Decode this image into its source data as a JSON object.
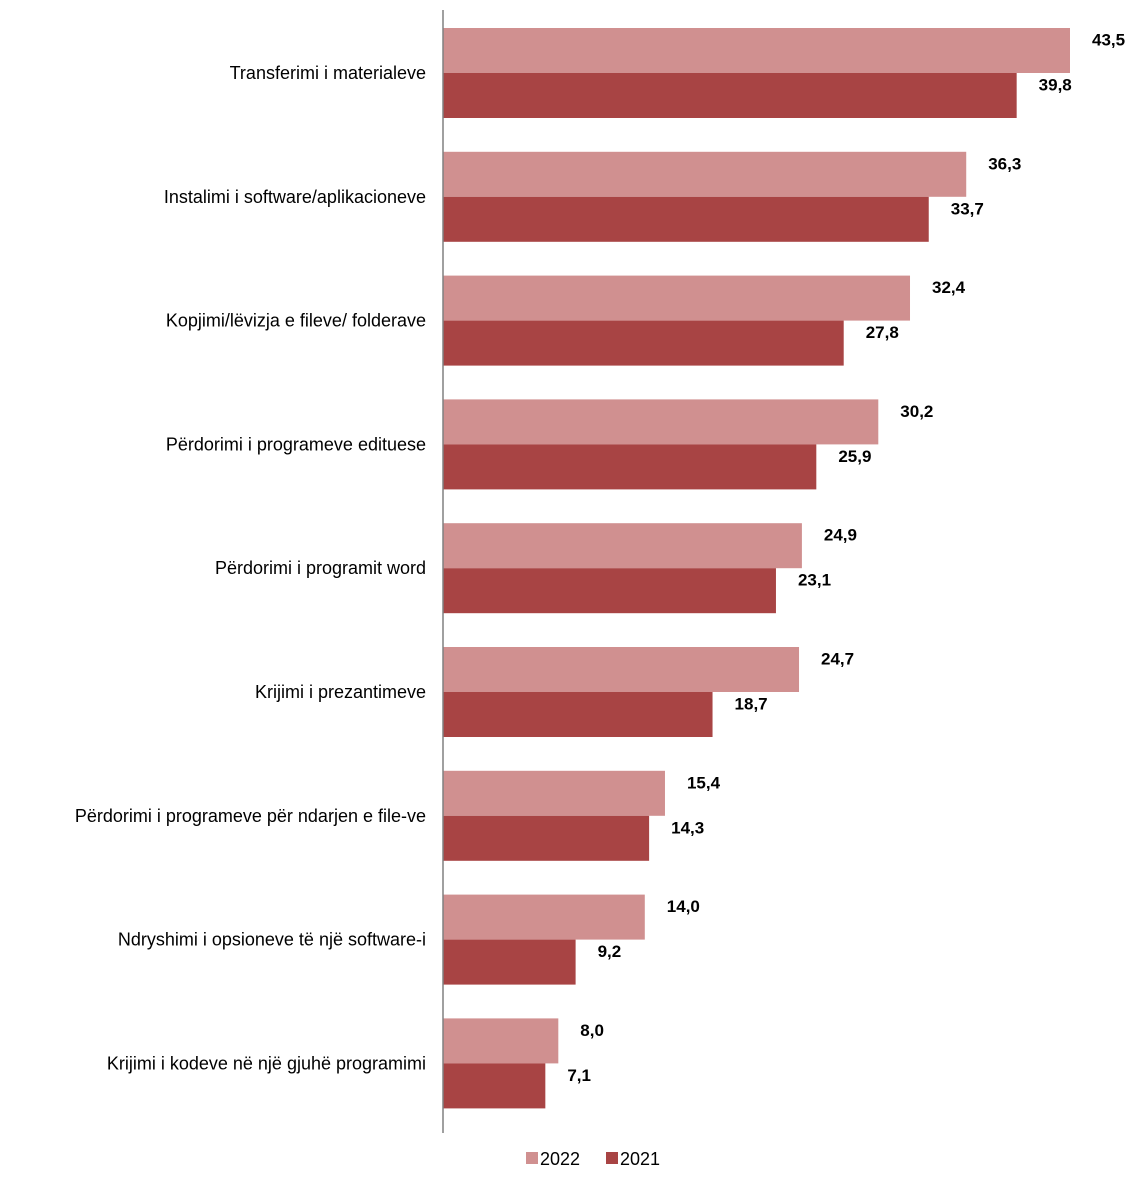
{
  "chart_data": {
    "type": "bar",
    "orientation": "horizontal",
    "categories": [
      "Transferimi i materialeve",
      "Instalimi i software/aplikacioneve",
      "Kopjimi/lëvizja e fileve/ folderave",
      "Përdorimi i programeve edituese",
      "Përdorimi i programit word",
      "Krijimi i prezantimeve",
      "Përdorimi i programeve për ndarjen e file-ve",
      "Ndryshimi i opsioneve të një software-i",
      "Krijimi i kodeve në një gjuhë programimi"
    ],
    "series": [
      {
        "name": "2022",
        "color": "#D09090",
        "values": [
          43.5,
          36.3,
          32.4,
          30.2,
          24.9,
          24.7,
          15.4,
          14.0,
          8.0
        ],
        "labels": [
          "43,5",
          "36,3",
          "32,4",
          "30,2",
          "24,9",
          "24,7",
          "15,4",
          "14,0",
          "8,0"
        ]
      },
      {
        "name": "2021",
        "color": "#A84444",
        "values": [
          39.8,
          33.7,
          27.8,
          25.9,
          23.1,
          18.7,
          14.3,
          9.2,
          7.1
        ],
        "labels": [
          "39,8",
          "33,7",
          "27,8",
          "25,9",
          "23,1",
          "18,7",
          "14,3",
          "9,2",
          "7,1"
        ]
      }
    ],
    "xlim": [
      0,
      43.5
    ],
    "grid": false,
    "legend": "bottom"
  }
}
